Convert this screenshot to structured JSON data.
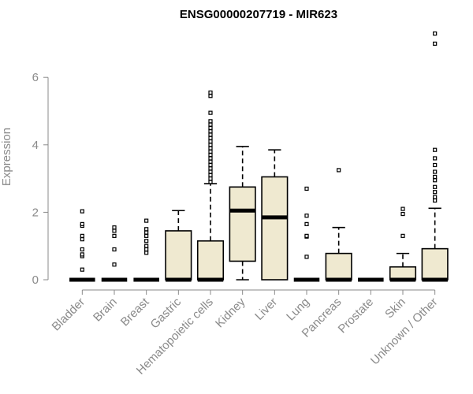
{
  "chart_data": {
    "type": "box",
    "title": "ENSG00000207719 - MIR623",
    "ylabel": "Expression",
    "xlabel": "",
    "ylim": [
      -0.1,
      7.4
    ],
    "yticks": [
      0,
      2,
      4,
      6
    ],
    "grid": false,
    "box_color": "#efe9d0",
    "categories": [
      "Bladder",
      "Brain",
      "Breast",
      "Gastric",
      "Hematopoietic cells",
      "Kidney",
      "Liver",
      "Lung",
      "Pancreas",
      "Prostate",
      "Skin",
      "Unknown / Other"
    ],
    "boxes": [
      {
        "q1": 0,
        "median": 0,
        "q3": 0,
        "whisker_low": 0,
        "whisker_high": 0,
        "outliers": [
          0.3,
          0.7,
          0.75,
          0.9,
          1.2,
          1.3,
          1.6,
          1.65,
          2.03
        ]
      },
      {
        "q1": 0,
        "median": 0,
        "q3": 0,
        "whisker_low": 0,
        "whisker_high": 0,
        "outliers": [
          0.45,
          0.9,
          1.3,
          1.45,
          1.55
        ]
      },
      {
        "q1": 0,
        "median": 0,
        "q3": 0,
        "whisker_low": 0,
        "whisker_high": 0,
        "outliers": [
          0.8,
          0.9,
          1.0,
          1.15,
          1.3,
          1.4,
          1.5,
          1.75
        ]
      },
      {
        "q1": 0,
        "median": 0,
        "q3": 1.45,
        "whisker_low": 0,
        "whisker_high": 2.05,
        "outliers": []
      },
      {
        "q1": 0,
        "median": 0,
        "q3": 1.15,
        "whisker_low": 0,
        "whisker_high": 2.85,
        "outliers": [
          2.9,
          3.0,
          3.1,
          3.2,
          3.3,
          3.4,
          3.5,
          3.6,
          3.7,
          3.8,
          3.9,
          4.0,
          4.1,
          4.2,
          4.3,
          4.4,
          4.5,
          4.6,
          4.7,
          4.95,
          5.45,
          5.55
        ]
      },
      {
        "q1": 0.55,
        "median": 2.05,
        "q3": 2.75,
        "whisker_low": 0,
        "whisker_high": 3.95,
        "outliers": []
      },
      {
        "q1": 0,
        "median": 1.85,
        "q3": 3.05,
        "whisker_low": 0,
        "whisker_high": 3.85,
        "outliers": []
      },
      {
        "q1": 0,
        "median": 0,
        "q3": 0,
        "whisker_low": 0,
        "whisker_high": 0,
        "outliers": [
          0.68,
          1.28,
          1.3,
          1.65,
          1.9,
          2.7
        ]
      },
      {
        "q1": 0,
        "median": 0,
        "q3": 0.78,
        "whisker_low": 0,
        "whisker_high": 1.55,
        "outliers": [
          3.25
        ]
      },
      {
        "q1": 0,
        "median": 0,
        "q3": 0,
        "whisker_low": 0,
        "whisker_high": 0,
        "outliers": []
      },
      {
        "q1": 0,
        "median": 0,
        "q3": 0.38,
        "whisker_low": 0,
        "whisker_high": 0.78,
        "outliers": [
          1.3,
          1.95,
          2.1
        ]
      },
      {
        "q1": 0,
        "median": 0,
        "q3": 0.92,
        "whisker_low": 0,
        "whisker_high": 2.12,
        "outliers": [
          2.35,
          2.45,
          2.6,
          2.75,
          2.95,
          3.05,
          3.2,
          3.4,
          3.6,
          3.85,
          7.0,
          7.3
        ]
      }
    ]
  }
}
